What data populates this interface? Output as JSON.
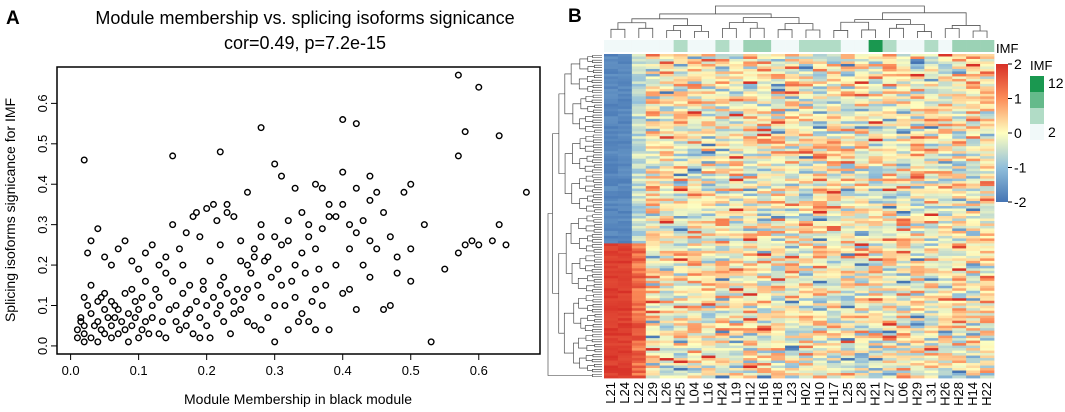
{
  "panel_a_label": "A",
  "panel_b_label": "B",
  "colors": {
    "heat_low": "#4575b4",
    "heat_mid": "#ffffbf",
    "heat_high": "#d73027",
    "imf_low": "#f1f9f9",
    "imf_high": "#1a9850",
    "axis": "#000000"
  },
  "chart_data": [
    {
      "type": "scatter",
      "title": "Module membership vs. splicing isoforms signicance",
      "subtitle": "cor=0.49, p=7.2e-15",
      "xlabel": "Module Membership in black module",
      "ylabel": "Splicing isoforms signicance for IMF",
      "xlim": [
        -0.02,
        0.69
      ],
      "ylim": [
        -0.02,
        0.69
      ],
      "xticks": [
        "0.0",
        "0.1",
        "0.2",
        "0.3",
        "0.4",
        "0.5",
        "0.6"
      ],
      "yticks": [
        "0.0",
        "0.1",
        "0.2",
        "0.3",
        "0.4",
        "0.5",
        "0.6"
      ],
      "points": [
        [
          0.01,
          0.04
        ],
        [
          0.01,
          0.02
        ],
        [
          0.015,
          0.07
        ],
        [
          0.02,
          0.05
        ],
        [
          0.02,
          0.03
        ],
        [
          0.025,
          0.1
        ],
        [
          0.03,
          0.08
        ],
        [
          0.03,
          0.02
        ],
        [
          0.035,
          0.05
        ],
        [
          0.04,
          0.06
        ],
        [
          0.04,
          0.01
        ],
        [
          0.045,
          0.12
        ],
        [
          0.05,
          0.09
        ],
        [
          0.05,
          0.03
        ],
        [
          0.055,
          0.07
        ],
        [
          0.06,
          0.05
        ],
        [
          0.06,
          0.11
        ],
        [
          0.065,
          0.1
        ],
        [
          0.07,
          0.03
        ],
        [
          0.075,
          0.06
        ],
        [
          0.08,
          0.13
        ],
        [
          0.085,
          0.08
        ],
        [
          0.09,
          0.05
        ],
        [
          0.095,
          0.11
        ],
        [
          0.1,
          0.02
        ],
        [
          0.1,
          0.09
        ],
        [
          0.105,
          0.04
        ],
        [
          0.11,
          0.16
        ],
        [
          0.12,
          0.07
        ],
        [
          0.125,
          0.14
        ],
        [
          0.13,
          0.03
        ],
        [
          0.13,
          0.12
        ],
        [
          0.14,
          0.18
        ],
        [
          0.145,
          0.09
        ],
        [
          0.15,
          0.16
        ],
        [
          0.155,
          0.06
        ],
        [
          0.16,
          0.04
        ],
        [
          0.165,
          0.13
        ],
        [
          0.17,
          0.08
        ],
        [
          0.175,
          0.15
        ],
        [
          0.18,
          0.03
        ],
        [
          0.185,
          0.11
        ],
        [
          0.19,
          0.07
        ],
        [
          0.195,
          0.14
        ],
        [
          0.2,
          0.1
        ],
        [
          0.2,
          0.05
        ],
        [
          0.205,
          0.02
        ],
        [
          0.21,
          0.12
        ],
        [
          0.215,
          0.08
        ],
        [
          0.22,
          0.15
        ],
        [
          0.225,
          0.06
        ],
        [
          0.23,
          0.13
        ],
        [
          0.235,
          0.03
        ],
        [
          0.24,
          0.11
        ],
        [
          0.25,
          0.09
        ],
        [
          0.26,
          0.14
        ],
        [
          0.27,
          0.05
        ],
        [
          0.28,
          0.12
        ],
        [
          0.29,
          0.07
        ],
        [
          0.3,
          0.1
        ],
        [
          0.31,
          0.15
        ],
        [
          0.32,
          0.04
        ],
        [
          0.33,
          0.12
        ],
        [
          0.34,
          0.08
        ],
        [
          0.35,
          0.06
        ],
        [
          0.36,
          0.14
        ],
        [
          0.37,
          0.1
        ],
        [
          0.38,
          0.04
        ],
        [
          0.4,
          0.13
        ],
        [
          0.42,
          0.09
        ],
        [
          0.025,
          0.23
        ],
        [
          0.03,
          0.26
        ],
        [
          0.04,
          0.29
        ],
        [
          0.05,
          0.22
        ],
        [
          0.06,
          0.2
        ],
        [
          0.07,
          0.24
        ],
        [
          0.08,
          0.26
        ],
        [
          0.09,
          0.21
        ],
        [
          0.1,
          0.19
        ],
        [
          0.11,
          0.23
        ],
        [
          0.12,
          0.25
        ],
        [
          0.13,
          0.2
        ],
        [
          0.14,
          0.22
        ],
        [
          0.15,
          0.3
        ],
        [
          0.16,
          0.24
        ],
        [
          0.17,
          0.28
        ],
        [
          0.18,
          0.32
        ],
        [
          0.185,
          0.33
        ],
        [
          0.19,
          0.27
        ],
        [
          0.2,
          0.34
        ],
        [
          0.21,
          0.35
        ],
        [
          0.215,
          0.31
        ],
        [
          0.22,
          0.25
        ],
        [
          0.23,
          0.33
        ],
        [
          0.24,
          0.32
        ],
        [
          0.25,
          0.21
        ],
        [
          0.26,
          0.2
        ],
        [
          0.27,
          0.24
        ],
        [
          0.28,
          0.3
        ],
        [
          0.29,
          0.22
        ],
        [
          0.3,
          0.27
        ],
        [
          0.31,
          0.25
        ],
        [
          0.32,
          0.31
        ],
        [
          0.33,
          0.2
        ],
        [
          0.34,
          0.23
        ],
        [
          0.35,
          0.3
        ],
        [
          0.36,
          0.24
        ],
        [
          0.37,
          0.39
        ],
        [
          0.38,
          0.35
        ],
        [
          0.39,
          0.32
        ],
        [
          0.4,
          0.43
        ],
        [
          0.41,
          0.3
        ],
        [
          0.42,
          0.28
        ],
        [
          0.43,
          0.31
        ],
        [
          0.44,
          0.26
        ],
        [
          0.45,
          0.24
        ],
        [
          0.46,
          0.33
        ],
        [
          0.47,
          0.27
        ],
        [
          0.48,
          0.22
        ],
        [
          0.49,
          0.38
        ],
        [
          0.5,
          0.24
        ],
        [
          0.52,
          0.3
        ],
        [
          0.55,
          0.19
        ],
        [
          0.57,
          0.23
        ],
        [
          0.58,
          0.25
        ],
        [
          0.59,
          0.26
        ],
        [
          0.6,
          0.25
        ],
        [
          0.62,
          0.26
        ],
        [
          0.63,
          0.3
        ],
        [
          0.64,
          0.25
        ],
        [
          0.02,
          0.46
        ],
        [
          0.15,
          0.47
        ],
        [
          0.22,
          0.48
        ],
        [
          0.28,
          0.54
        ],
        [
          0.3,
          0.45
        ],
        [
          0.4,
          0.56
        ],
        [
          0.42,
          0.55
        ],
        [
          0.57,
          0.67
        ],
        [
          0.58,
          0.53
        ],
        [
          0.6,
          0.64
        ],
        [
          0.63,
          0.52
        ],
        [
          0.57,
          0.47
        ],
        [
          0.67,
          0.38
        ],
        [
          0.26,
          0.38
        ],
        [
          0.33,
          0.39
        ],
        [
          0.36,
          0.4
        ],
        [
          0.44,
          0.42
        ],
        [
          0.23,
          0.35
        ],
        [
          0.4,
          0.35
        ],
        [
          0.45,
          0.38
        ],
        [
          0.31,
          0.42
        ],
        [
          0.38,
          0.32
        ],
        [
          0.34,
          0.33
        ],
        [
          0.28,
          0.27
        ],
        [
          0.35,
          0.27
        ],
        [
          0.53,
          0.01
        ],
        [
          0.48,
          0.18
        ],
        [
          0.41,
          0.14
        ],
        [
          0.44,
          0.17
        ],
        [
          0.46,
          0.09
        ],
        [
          0.36,
          0.04
        ],
        [
          0.3,
          0.01
        ],
        [
          0.28,
          0.04
        ],
        [
          0.26,
          0.06
        ],
        [
          0.24,
          0.08
        ],
        [
          0.22,
          0.1
        ],
        [
          0.19,
          0.02
        ],
        [
          0.17,
          0.05
        ],
        [
          0.14,
          0.02
        ],
        [
          0.12,
          0.1
        ],
        [
          0.11,
          0.06
        ],
        [
          0.09,
          0.14
        ],
        [
          0.08,
          0.04
        ],
        [
          0.07,
          0.09
        ],
        [
          0.06,
          0.02
        ],
        [
          0.05,
          0.13
        ],
        [
          0.04,
          0.11
        ],
        [
          0.03,
          0.15
        ],
        [
          0.02,
          0.12
        ],
        [
          0.015,
          0.06
        ],
        [
          0.02,
          0.01
        ],
        [
          0.045,
          0.04
        ],
        [
          0.065,
          0.07
        ],
        [
          0.085,
          0.01
        ],
        [
          0.095,
          0.07
        ],
        [
          0.105,
          0.12
        ],
        [
          0.115,
          0.03
        ],
        [
          0.135,
          0.06
        ],
        [
          0.155,
          0.1
        ],
        [
          0.165,
          0.2
        ],
        [
          0.175,
          0.09
        ],
        [
          0.195,
          0.16
        ],
        [
          0.205,
          0.21
        ],
        [
          0.225,
          0.17
        ],
        [
          0.245,
          0.14
        ],
        [
          0.255,
          0.12
        ],
        [
          0.265,
          0.18
        ],
        [
          0.275,
          0.15
        ],
        [
          0.285,
          0.21
        ],
        [
          0.295,
          0.17
        ],
        [
          0.305,
          0.19
        ],
        [
          0.315,
          0.1
        ],
        [
          0.325,
          0.16
        ],
        [
          0.335,
          0.06
        ],
        [
          0.345,
          0.18
        ],
        [
          0.355,
          0.11
        ],
        [
          0.365,
          0.19
        ],
        [
          0.375,
          0.15
        ],
        [
          0.39,
          0.2
        ],
        [
          0.43,
          0.2
        ],
        [
          0.47,
          0.1
        ],
        [
          0.5,
          0.16
        ],
        [
          0.44,
          0.36
        ],
        [
          0.5,
          0.4
        ],
        [
          0.41,
          0.24
        ],
        [
          0.42,
          0.39
        ],
        [
          0.37,
          0.29
        ],
        [
          0.32,
          0.26
        ],
        [
          0.27,
          0.22
        ],
        [
          0.25,
          0.26
        ]
      ]
    },
    {
      "type": "heatmap",
      "columns": [
        "L21",
        "L24",
        "L22",
        "L29",
        "L26",
        "H25",
        "L04",
        "L16",
        "H24",
        "L19",
        "H12",
        "H16",
        "H18",
        "L23",
        "H02",
        "H10",
        "H17",
        "L25",
        "L28",
        "H21",
        "L27",
        "L06",
        "H29",
        "L31",
        "H26",
        "H28",
        "H14",
        "H22"
      ],
      "row_count": 130,
      "color_scale": {
        "label": "",
        "ticks": [
          "2",
          "1",
          "0",
          "-1",
          "-2"
        ],
        "min": -2,
        "max": 2
      },
      "imf_annotation": {
        "title": "IMF",
        "side_label": "IMF",
        "ticks": [
          "12",
          "2"
        ],
        "values": [
          2,
          2,
          2,
          2,
          2,
          5,
          2,
          2,
          5,
          2,
          6,
          6,
          2,
          2,
          5,
          5,
          5,
          2,
          2,
          12,
          5,
          2,
          2,
          5,
          2,
          6,
          6,
          6
        ]
      }
    }
  ]
}
